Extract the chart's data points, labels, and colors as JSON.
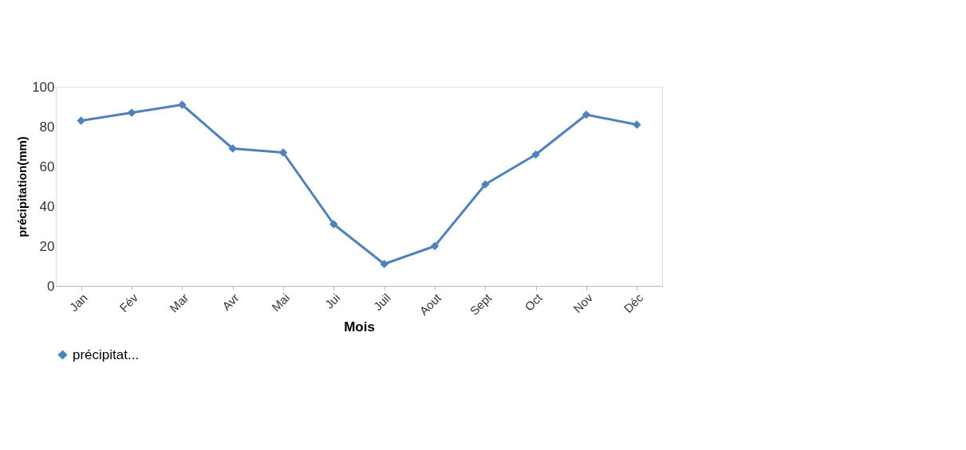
{
  "chart_data": {
    "type": "line",
    "xlabel": "Mois",
    "ylabel": "précipitation(mm)",
    "categories": [
      "Jan",
      "Fév",
      "Mar",
      "Avr",
      "Mai",
      "Jui",
      "Juil",
      "Aout",
      "Sept",
      "Oct",
      "Nov",
      "Déc"
    ],
    "series": [
      {
        "name": "précipitat...",
        "color": "#4f81bd",
        "values": [
          83,
          87,
          91,
          69,
          67,
          31,
          11,
          20,
          51,
          66,
          86,
          81
        ]
      }
    ],
    "ylim": [
      0,
      100
    ],
    "yticks": [
      0,
      20,
      40,
      60,
      80,
      100
    ],
    "grid": false,
    "legend": "bottom",
    "marker": "diamond",
    "line_style": "solid"
  }
}
